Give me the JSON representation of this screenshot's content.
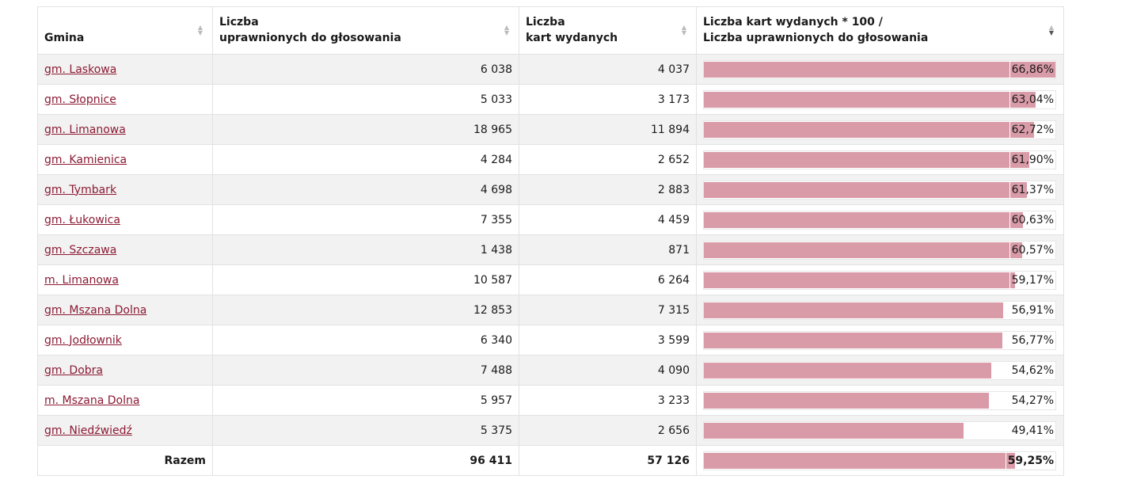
{
  "table": {
    "headers": {
      "gmina": "Gmina",
      "uprawnionych_line1": "Liczba",
      "uprawnionych_line2": "uprawnionych do głosowania",
      "wydanych_line1": "Liczba",
      "wydanych_line2": "kart wydanych",
      "ratio_line1": "Liczba kart wydanych * 100 /",
      "ratio_line2": "Liczba uprawnionych do głosowania"
    },
    "rows": [
      {
        "name": "gm. Laskowa",
        "uprawnionych": "6 038",
        "wydanych": "4 037",
        "pct_label": "66,86%",
        "pct": 66.86
      },
      {
        "name": "gm. Słopnice",
        "uprawnionych": "5 033",
        "wydanych": "3 173",
        "pct_label": "63,04%",
        "pct": 63.04
      },
      {
        "name": "gm. Limanowa",
        "uprawnionych": "18 965",
        "wydanych": "11 894",
        "pct_label": "62,72%",
        "pct": 62.72
      },
      {
        "name": "gm. Kamienica",
        "uprawnionych": "4 284",
        "wydanych": "2 652",
        "pct_label": "61,90%",
        "pct": 61.9
      },
      {
        "name": "gm. Tymbark",
        "uprawnionych": "4 698",
        "wydanych": "2 883",
        "pct_label": "61,37%",
        "pct": 61.37
      },
      {
        "name": "gm. Łukowica",
        "uprawnionych": "7 355",
        "wydanych": "4 459",
        "pct_label": "60,63%",
        "pct": 60.63
      },
      {
        "name": "gm. Szczawa",
        "uprawnionych": "1 438",
        "wydanych": "871",
        "pct_label": "60,57%",
        "pct": 60.57
      },
      {
        "name": "m. Limanowa",
        "uprawnionych": "10 587",
        "wydanych": "6 264",
        "pct_label": "59,17%",
        "pct": 59.17
      },
      {
        "name": "gm. Mszana Dolna",
        "uprawnionych": "12 853",
        "wydanych": "7 315",
        "pct_label": "56,91%",
        "pct": 56.91
      },
      {
        "name": "gm. Jodłownik",
        "uprawnionych": "6 340",
        "wydanych": "3 599",
        "pct_label": "56,77%",
        "pct": 56.77
      },
      {
        "name": "gm. Dobra",
        "uprawnionych": "7 488",
        "wydanych": "4 090",
        "pct_label": "54,62%",
        "pct": 54.62
      },
      {
        "name": "m. Mszana Dolna",
        "uprawnionych": "5 957",
        "wydanych": "3 233",
        "pct_label": "54,27%",
        "pct": 54.27
      },
      {
        "name": "gm. Niedźwiedź",
        "uprawnionych": "5 375",
        "wydanych": "2 656",
        "pct_label": "49,41%",
        "pct": 49.41
      }
    ],
    "total": {
      "label": "Razem",
      "uprawnionych": "96 411",
      "wydanych": "57 126",
      "pct_label": "59,25%",
      "pct": 59.25
    },
    "scale_max_pct": 66.86
  },
  "colors": {
    "bar": "#d99ba8",
    "link": "#8b1a33"
  }
}
